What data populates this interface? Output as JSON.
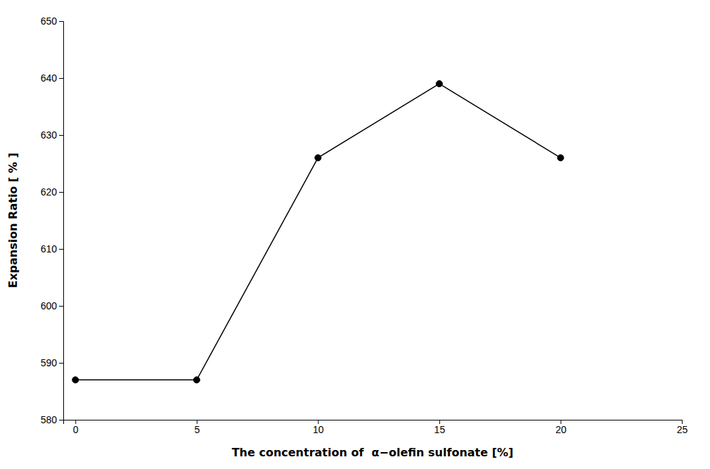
{
  "chart_data": {
    "type": "line",
    "x": [
      0,
      5,
      10,
      15,
      20
    ],
    "values": [
      587,
      587,
      626,
      639,
      626
    ],
    "xlabel": "The concentration of  α−olefin sulfonate [%]",
    "ylabel": "Expansion Ratio [ % ]",
    "xlim": [
      -0.5,
      25
    ],
    "ylim": [
      580,
      650
    ],
    "xticks": [
      0,
      5,
      10,
      15,
      20,
      25
    ],
    "yticks": [
      580,
      590,
      600,
      610,
      620,
      630,
      640,
      650
    ],
    "color": "#000000",
    "marker": "circle",
    "grid": false
  }
}
